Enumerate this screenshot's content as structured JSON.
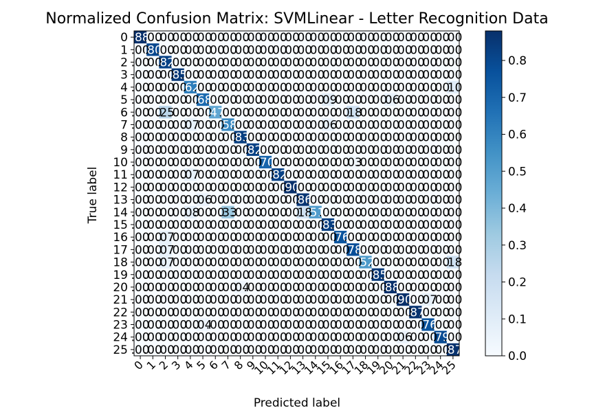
{
  "chart_data": {
    "type": "heatmap",
    "title": "Normalized Confusion Matrix: SVMLinear - Letter Recognition Data",
    "xlabel": "Predicted label",
    "ylabel": "True label",
    "row_labels": [
      "0",
      "1",
      "2",
      "3",
      "4",
      "5",
      "6",
      "7",
      "8",
      "9",
      "10",
      "11",
      "12",
      "13",
      "14",
      "15",
      "16",
      "17",
      "18",
      "19",
      "20",
      "21",
      "22",
      "23",
      "24",
      "25"
    ],
    "col_labels": [
      "0",
      "1",
      "2",
      "3",
      "4",
      "5",
      "6",
      "7",
      "8",
      "9",
      "10",
      "11",
      "12",
      "13",
      "14",
      "15",
      "16",
      "17",
      "18",
      "19",
      "20",
      "21",
      "22",
      "23",
      "24",
      "25"
    ],
    "colormap": "Blues",
    "vmin": 0.0,
    "vmax": 0.88,
    "colorbar_ticks": [
      "0.0",
      "0.1",
      "0.2",
      "0.3",
      "0.4",
      "0.5",
      "0.6",
      "0.7",
      "0.8"
    ],
    "colorbar_tick_values": [
      0.0,
      0.1,
      0.2,
      0.3,
      0.4,
      0.5,
      0.6,
      0.7,
      0.8
    ],
    "diagonal": [
      0.88,
      0.8,
      0.82,
      0.85,
      0.62,
      0.68,
      0.47,
      0.58,
      0.83,
      0.82,
      0.7,
      0.82,
      0.9,
      0.86,
      0.51,
      0.83,
      0.76,
      0.78,
      0.52,
      0.85,
      0.88,
      0.9,
      0.87,
      0.76,
      0.79,
      0.87
    ],
    "off_diagonal": [
      {
        "r": 6,
        "c": 2,
        "v": 0.25
      },
      {
        "r": 6,
        "c": 17,
        "v": 0.18
      },
      {
        "r": 14,
        "c": 7,
        "v": 0.33
      },
      {
        "r": 14,
        "c": 13,
        "v": 0.18
      },
      {
        "r": 18,
        "c": 25,
        "v": 0.18
      },
      {
        "r": 4,
        "c": 25,
        "v": 0.1
      },
      {
        "r": 5,
        "c": 15,
        "v": 0.09
      },
      {
        "r": 7,
        "c": 4,
        "v": 0.07
      },
      {
        "r": 7,
        "c": 15,
        "v": 0.06
      },
      {
        "r": 14,
        "c": 4,
        "v": 0.08
      },
      {
        "r": 13,
        "c": 5,
        "v": 0.06
      },
      {
        "r": 10,
        "c": 17,
        "v": 0.03
      },
      {
        "r": 16,
        "c": 2,
        "v": 0.07
      },
      {
        "r": 17,
        "c": 2,
        "v": 0.07
      },
      {
        "r": 18,
        "c": 2,
        "v": 0.07
      },
      {
        "r": 20,
        "c": 8,
        "v": 0.04
      },
      {
        "r": 23,
        "c": 5,
        "v": 0.04
      },
      {
        "r": 24,
        "c": 21,
        "v": 0.06
      },
      {
        "r": 11,
        "c": 4,
        "v": 0.07
      },
      {
        "r": 21,
        "c": 23,
        "v": 0.07
      },
      {
        "r": 5,
        "c": 20,
        "v": 0.06
      }
    ]
  }
}
